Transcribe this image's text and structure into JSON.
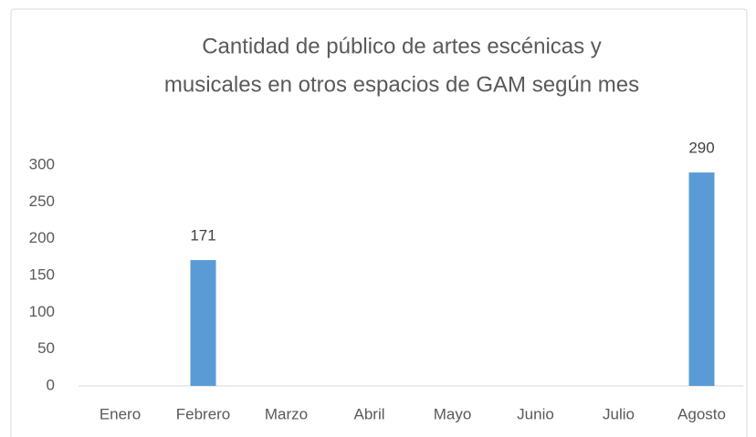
{
  "chart_data": {
    "type": "bar",
    "title": [
      "Cantidad de público de artes escénicas y",
      "musicales en otros espacios de GAM según mes"
    ],
    "categories": [
      "Enero",
      "Febrero",
      "Marzo",
      "Abril",
      "Mayo",
      "Junio",
      "Julio",
      "Agosto"
    ],
    "values": [
      null,
      171,
      null,
      null,
      null,
      null,
      null,
      290
    ],
    "color": "#5b9bd5",
    "ylim": [
      0,
      300
    ],
    "yticks": [
      0,
      50,
      100,
      150,
      200,
      250,
      300
    ],
    "grid": false
  }
}
